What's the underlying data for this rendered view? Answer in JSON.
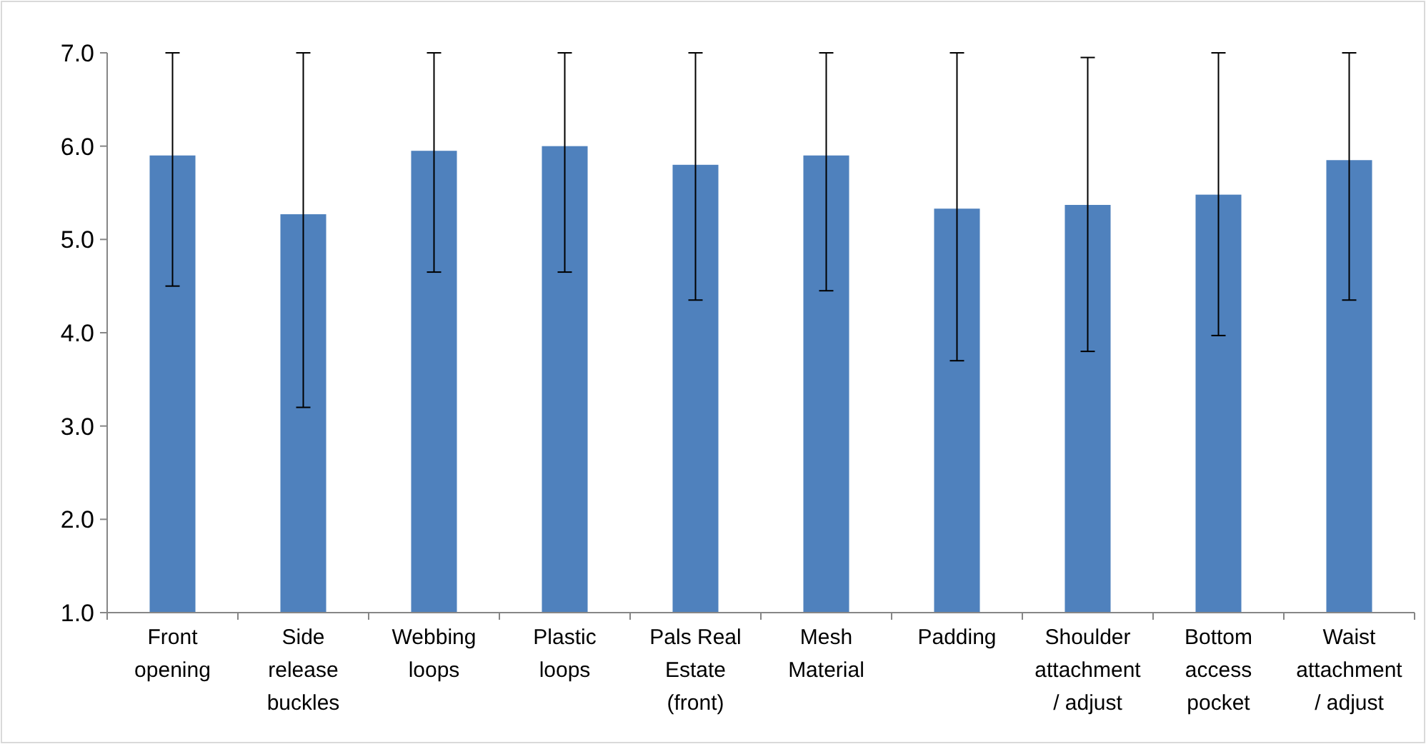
{
  "chart_data": {
    "type": "bar",
    "categories": [
      "Front opening",
      "Side release buckles",
      "Webbing loops",
      "Plastic loops",
      "Pals Real Estate (front)",
      "Mesh Material",
      "Padding",
      "Shoulder attachment / adjust",
      "Bottom access pocket",
      "Waist attachment / adjust"
    ],
    "values": [
      5.9,
      5.27,
      5.95,
      6.0,
      5.8,
      5.9,
      5.33,
      5.37,
      5.48,
      5.85
    ],
    "errors": [
      [
        4.5,
        7.0
      ],
      [
        3.2,
        7.0
      ],
      [
        4.65,
        7.0
      ],
      [
        4.65,
        7.0
      ],
      [
        4.35,
        7.0
      ],
      [
        4.45,
        7.0
      ],
      [
        3.7,
        7.0
      ],
      [
        3.8,
        6.95
      ],
      [
        3.97,
        7.0
      ],
      [
        4.35,
        7.0
      ]
    ],
    "color": "#4f81bd",
    "ylim": [
      1,
      7
    ],
    "yticks": [
      {
        "value": 1,
        "label": "1.0"
      },
      {
        "value": 2,
        "label": "2.0"
      },
      {
        "value": 3,
        "label": "3.0"
      },
      {
        "value": 4,
        "label": "4.0"
      },
      {
        "value": 5,
        "label": "5.0"
      },
      {
        "value": 6,
        "label": "6.0"
      },
      {
        "value": 7,
        "label": "7.0"
      }
    ],
    "grid": false
  }
}
